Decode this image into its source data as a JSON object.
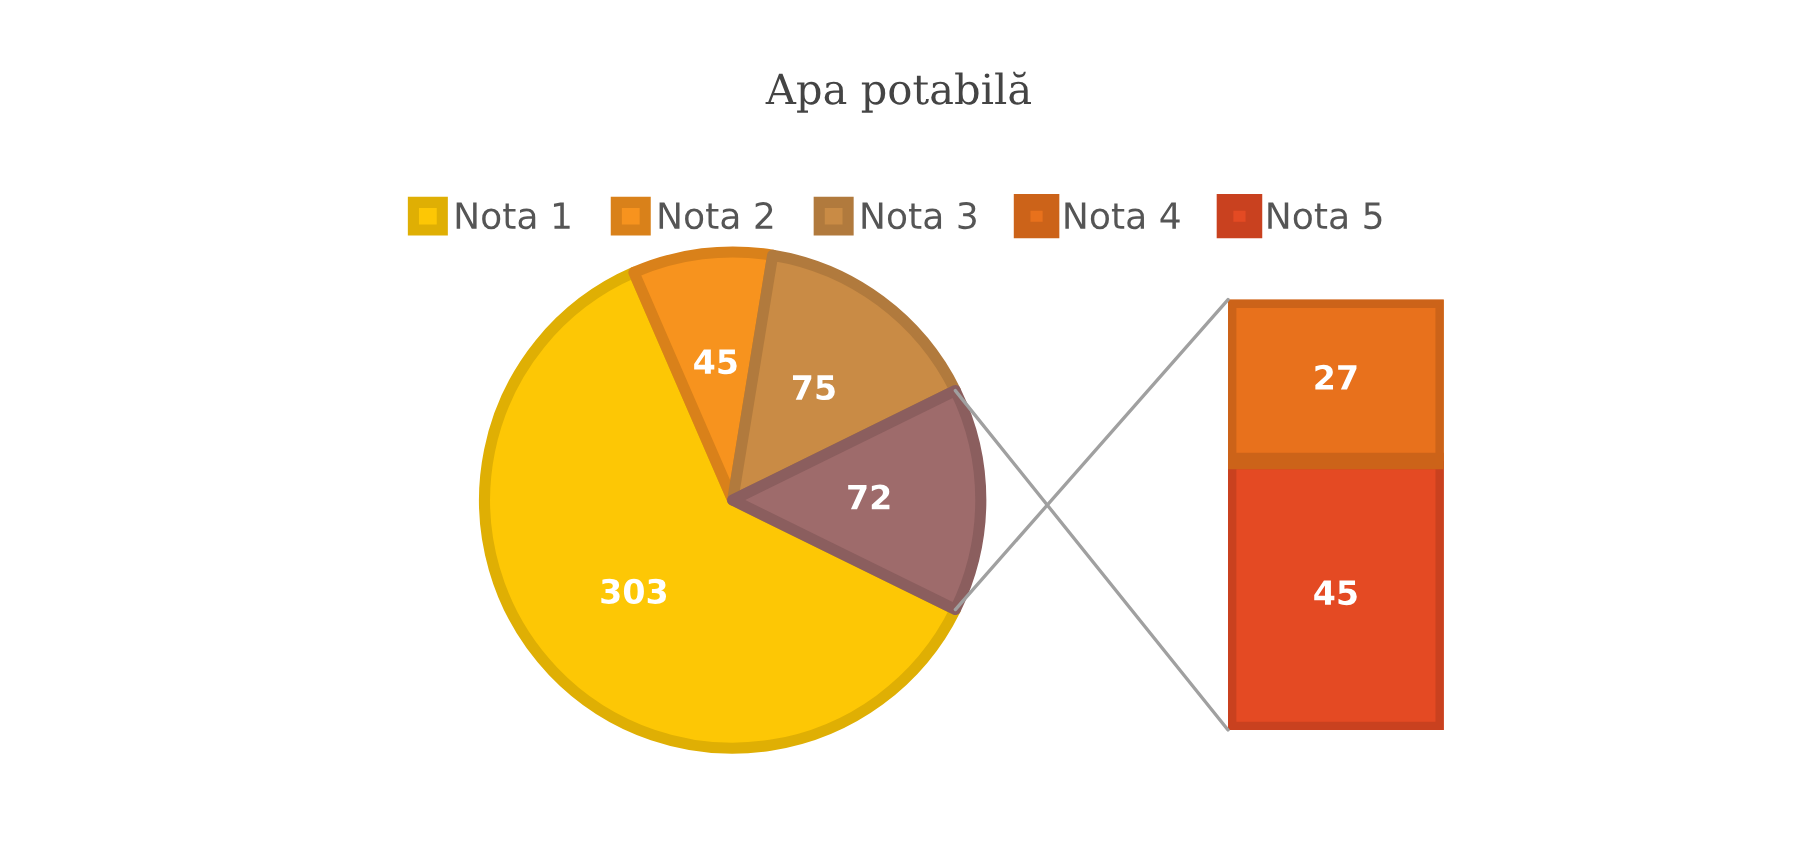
{
  "chart_data": [
    {
      "type": "pie",
      "title": "Apa potabilă",
      "categories": [
        "Nota 1",
        "Nota 2",
        "Nota 3",
        null
      ],
      "values": [
        303,
        45,
        75,
        72
      ],
      "colors": [
        "#fdc705",
        "#f7931e",
        "#c98b45",
        "#9e6b6b"
      ],
      "data_labels": true,
      "legend": "top"
    },
    {
      "type": "bar",
      "stacked": true,
      "categories": [
        null
      ],
      "series": [
        {
          "name": "Nota 5",
          "color": "#e44a23",
          "values": [
            45
          ]
        },
        {
          "name": "Nota 4",
          "color": "#e8711c",
          "values": [
            27
          ]
        }
      ],
      "data_labels": true,
      "tick_labels": false,
      "legend": "top"
    }
  ]
}
